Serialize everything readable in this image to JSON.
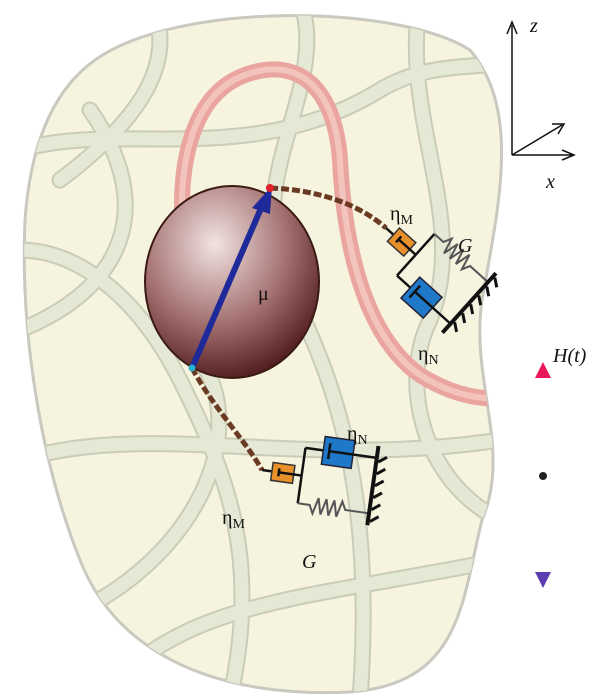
{
  "axes": {
    "z": "z",
    "x": "x"
  },
  "particle": {
    "moment": "μ"
  },
  "upper_unit": {
    "maxwell": {
      "symbol": "η",
      "subscript": "M"
    },
    "spring": "G",
    "newton": {
      "symbol": "η",
      "subscript": "N"
    }
  },
  "lower_unit": {
    "maxwell": {
      "symbol": "η",
      "subscript": "M"
    },
    "spring": "G",
    "newton": {
      "symbol": "η",
      "subscript": "N"
    }
  },
  "field": "H(t)"
}
